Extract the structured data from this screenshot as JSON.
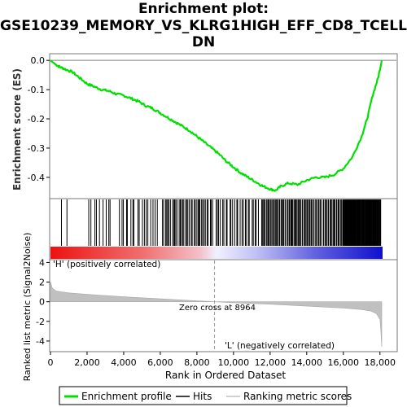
{
  "title_lines": [
    "Enrichment plot:",
    "GSE10239_MEMORY_VS_KLRG1HIGH_EFF_CD8_TCELL_",
    "DN"
  ],
  "colors": {
    "es_line": "#00e000",
    "hits": "#000000",
    "metric_fill": "#c0c0c0",
    "pos_label": "#ff0000",
    "neg_label": "#0000ff"
  },
  "chart_data": {
    "type": "line",
    "n_genes": 18000,
    "es_panel": {
      "ylabel": "Enrichment score (ES)",
      "ylim": [
        -0.47,
        0.02
      ],
      "yticks": [
        0.0,
        -0.1,
        -0.2,
        -0.3,
        -0.4
      ],
      "ytick_labels": [
        "0.0",
        "-0.1",
        "-0.2",
        "-0.3",
        "-0.4"
      ],
      "x": [
        0,
        300,
        500,
        800,
        1200,
        1600,
        2000,
        2400,
        2800,
        3200,
        3600,
        4000,
        4400,
        4800,
        5200,
        5600,
        6000,
        6400,
        6800,
        7200,
        7600,
        8000,
        8400,
        8800,
        9200,
        9600,
        10000,
        10400,
        10800,
        11200,
        11600,
        12000,
        12300,
        12600,
        13000,
        13500,
        14000,
        14500,
        15000,
        15500,
        16000,
        16500,
        17000,
        17300,
        17600,
        17900,
        18100
      ],
      "es": [
        0.0,
        -0.015,
        -0.022,
        -0.03,
        -0.04,
        -0.06,
        -0.08,
        -0.09,
        -0.1,
        -0.105,
        -0.115,
        -0.12,
        -0.13,
        -0.14,
        -0.155,
        -0.165,
        -0.18,
        -0.195,
        -0.21,
        -0.225,
        -0.24,
        -0.26,
        -0.28,
        -0.3,
        -0.32,
        -0.345,
        -0.365,
        -0.385,
        -0.4,
        -0.415,
        -0.43,
        -0.44,
        -0.445,
        -0.43,
        -0.42,
        -0.425,
        -0.41,
        -0.4,
        -0.4,
        -0.39,
        -0.37,
        -0.33,
        -0.26,
        -0.2,
        -0.12,
        -0.06,
        0.0
      ]
    },
    "hits": [
      {
        "from": 600,
        "to": 600,
        "count": 1
      },
      {
        "from": 900,
        "to": 900,
        "count": 1
      },
      {
        "from": 2000,
        "to": 3400,
        "count": 9
      },
      {
        "from": 3700,
        "to": 5900,
        "count": 18
      },
      {
        "from": 6100,
        "to": 8900,
        "count": 38
      },
      {
        "from": 9000,
        "to": 11400,
        "count": 26
      },
      {
        "from": 11500,
        "to": 14200,
        "count": 50
      },
      {
        "from": 14200,
        "to": 16000,
        "count": 30
      },
      {
        "from": 16000,
        "to": 18050,
        "count": 90
      }
    ],
    "metric_panel": {
      "ylabel": "Ranked list metric (Signal2Noise)",
      "ylim": [
        -5,
        4.2
      ],
      "yticks": [
        4,
        2,
        0,
        -2,
        -4
      ],
      "ytick_labels": [
        "4",
        "2",
        "0",
        "-2",
        "-4"
      ],
      "x": [
        0,
        100,
        300,
        600,
        1000,
        2000,
        4000,
        6000,
        8000,
        8964,
        10000,
        12000,
        14000,
        16000,
        17000,
        17500,
        17800,
        18000,
        18050,
        18100
      ],
      "values": [
        2.0,
        1.4,
        1.1,
        1.0,
        0.9,
        0.75,
        0.5,
        0.3,
        0.1,
        0.0,
        -0.1,
        -0.25,
        -0.45,
        -0.65,
        -0.8,
        -0.95,
        -1.2,
        -1.8,
        -3.0,
        -4.6
      ],
      "zero_cross_label": "Zero cross at 8964",
      "zero_cross": 8964,
      "pos_label": "'H' (positively correlated)",
      "neg_label": "'L' (negatively correlated)"
    },
    "xaxis": {
      "xlabel": "Rank in Ordered Dataset",
      "xlim": [
        0,
        18900
      ],
      "xticks": [
        0,
        2000,
        4000,
        6000,
        8000,
        10000,
        12000,
        14000,
        16000,
        18000
      ],
      "xtick_labels": [
        "0",
        "2,000",
        "4,000",
        "6,000",
        "8,000",
        "10,000",
        "12,000",
        "14,000",
        "16,000",
        "18,000"
      ]
    },
    "legend": {
      "position": "bottom",
      "items": [
        "Enrichment profile",
        "Hits",
        "Ranking metric scores"
      ]
    }
  }
}
